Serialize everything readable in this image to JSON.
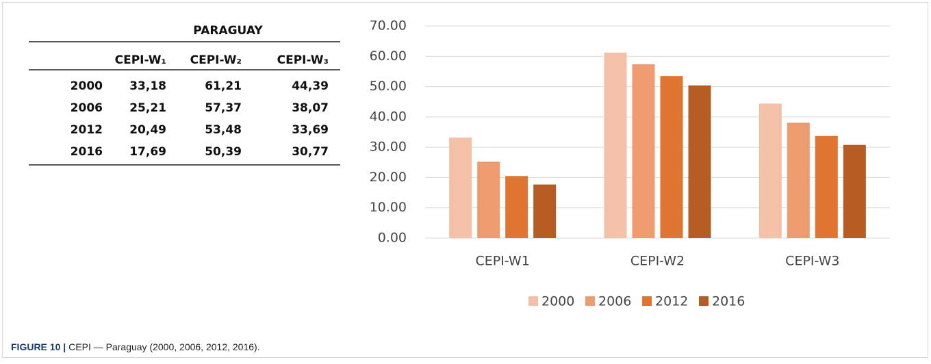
{
  "table": {
    "title": "PARAGUAY",
    "header": [
      "",
      "CEPI-W₁",
      "CEPI-W₂",
      "CEPI-W₃"
    ],
    "rows": [
      [
        "2000",
        "33,18",
        "61,21",
        "44,39"
      ],
      [
        "2006",
        "25,21",
        "57,37",
        "38,07"
      ],
      [
        "2012",
        "20,49",
        "53,48",
        "33,69"
      ],
      [
        "2016",
        "17,69",
        "50,39",
        "30,77"
      ]
    ]
  },
  "chart_data": {
    "type": "bar",
    "categories": [
      "CEPI-W1",
      "CEPI-W2",
      "CEPI-W3"
    ],
    "series": [
      {
        "name": "2000",
        "color": "#f5c0a8",
        "values": [
          33.18,
          61.21,
          44.39
        ]
      },
      {
        "name": "2006",
        "color": "#ef9b70",
        "values": [
          25.21,
          57.37,
          38.07
        ]
      },
      {
        "name": "2012",
        "color": "#df7530",
        "values": [
          20.49,
          53.48,
          33.69
        ]
      },
      {
        "name": "2016",
        "color": "#b65d24",
        "values": [
          17.69,
          50.39,
          30.77
        ]
      }
    ],
    "ylim": [
      0,
      70
    ],
    "yticks": [
      {
        "value": 0,
        "label": "0.00"
      },
      {
        "value": 10,
        "label": "10.00"
      },
      {
        "value": 20,
        "label": "20.00"
      },
      {
        "value": 30,
        "label": "30.00"
      },
      {
        "value": 40,
        "label": "40.00"
      },
      {
        "value": 50,
        "label": "50.00"
      },
      {
        "value": 60,
        "label": "60.00"
      },
      {
        "value": 70,
        "label": "70.00"
      }
    ],
    "grid": true,
    "legend": "bottom"
  },
  "caption": {
    "label": "FIGURE 10 |",
    "text": "CEPI — Paraguay (2000, 2006, 2012, 2016)."
  }
}
